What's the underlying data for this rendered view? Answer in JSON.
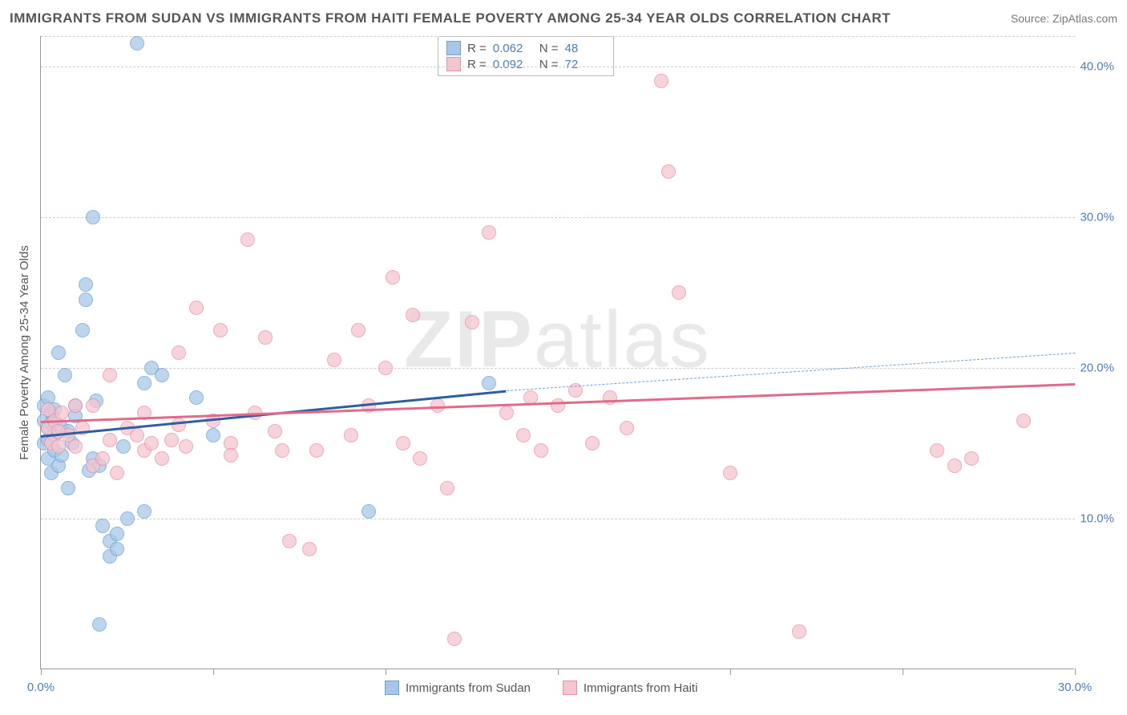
{
  "title": "IMMIGRANTS FROM SUDAN VS IMMIGRANTS FROM HAITI FEMALE POVERTY AMONG 25-34 YEAR OLDS CORRELATION CHART",
  "source_label": "Source: ZipAtlas.com",
  "watermark": {
    "bold": "ZIP",
    "rest": "atlas"
  },
  "y_axis_label": "Female Poverty Among 25-34 Year Olds",
  "chart": {
    "type": "scatter",
    "background_color": "#ffffff",
    "grid_color": "#cccccc",
    "axis_color": "#999999",
    "xlim": [
      0,
      30
    ],
    "ylim": [
      0,
      42
    ],
    "x_ticks": [
      0,
      5,
      10,
      15,
      20,
      25,
      30
    ],
    "x_tick_labels": {
      "0": "0.0%",
      "30": "30.0%"
    },
    "y_ticks": [
      10,
      20,
      30,
      40
    ],
    "y_tick_labels": {
      "10": "10.0%",
      "20": "20.0%",
      "30": "30.0%",
      "40": "40.0%"
    },
    "marker_radius": 9,
    "marker_stroke_width": 1.5,
    "series": [
      {
        "name": "Immigrants from Sudan",
        "color_fill": "#a8c7e8",
        "color_stroke": "#6d9fd1",
        "swatch_fill": "#a8c7e8",
        "swatch_border": "#6d9fd1",
        "R": "0.062",
        "N": "48",
        "trend": {
          "solid": {
            "x1": 0,
            "y1": 15.5,
            "x2": 13.5,
            "y2": 18.5,
            "color": "#2e5e9e",
            "width": 3
          },
          "dashed": {
            "x1": 13.5,
            "y1": 18.5,
            "x2": 30,
            "y2": 21.0,
            "color": "#6d9fd1",
            "width": 1.5
          }
        },
        "points": [
          [
            0.1,
            16.5
          ],
          [
            0.1,
            15.0
          ],
          [
            0.1,
            17.5
          ],
          [
            0.2,
            14.0
          ],
          [
            0.2,
            16.0
          ],
          [
            0.2,
            18.0
          ],
          [
            0.2,
            15.2
          ],
          [
            0.3,
            13.0
          ],
          [
            0.3,
            17.0
          ],
          [
            0.4,
            15.5
          ],
          [
            0.4,
            14.5
          ],
          [
            0.5,
            21.0
          ],
          [
            0.5,
            13.5
          ],
          [
            0.6,
            16.0
          ],
          [
            0.7,
            19.5
          ],
          [
            0.8,
            12.0
          ],
          [
            0.9,
            15.0
          ],
          [
            1.0,
            17.5
          ],
          [
            1.2,
            22.5
          ],
          [
            1.3,
            24.5
          ],
          [
            1.3,
            25.5
          ],
          [
            1.5,
            30.0
          ],
          [
            1.5,
            14.0
          ],
          [
            1.7,
            13.5
          ],
          [
            1.7,
            3.0
          ],
          [
            1.8,
            9.5
          ],
          [
            2.0,
            7.5
          ],
          [
            2.0,
            8.5
          ],
          [
            2.2,
            8.0
          ],
          [
            2.2,
            9.0
          ],
          [
            2.5,
            10.0
          ],
          [
            2.8,
            41.5
          ],
          [
            3.0,
            10.5
          ],
          [
            3.0,
            19.0
          ],
          [
            3.2,
            20.0
          ],
          [
            3.5,
            19.5
          ],
          [
            4.5,
            18.0
          ],
          [
            5.0,
            15.5
          ],
          [
            9.5,
            10.5
          ],
          [
            13.0,
            19.0
          ],
          [
            0.3,
            16.3
          ],
          [
            0.4,
            17.2
          ],
          [
            0.6,
            14.2
          ],
          [
            0.8,
            15.8
          ],
          [
            1.0,
            16.8
          ],
          [
            1.4,
            13.2
          ],
          [
            1.6,
            17.8
          ],
          [
            2.4,
            14.8
          ]
        ]
      },
      {
        "name": "Immigrants from Haiti",
        "color_fill": "#f5c5d1",
        "color_stroke": "#e590a8",
        "swatch_fill": "#f5c5d1",
        "swatch_border": "#e590a8",
        "R": "0.092",
        "N": "72",
        "trend": {
          "solid": {
            "x1": 0,
            "y1": 16.5,
            "x2": 30,
            "y2": 19.0,
            "color": "#e06a8a",
            "width": 3
          }
        },
        "points": [
          [
            0.2,
            16.0
          ],
          [
            0.2,
            17.2
          ],
          [
            0.3,
            15.0
          ],
          [
            0.4,
            16.5
          ],
          [
            0.5,
            14.8
          ],
          [
            0.6,
            17.0
          ],
          [
            0.8,
            15.5
          ],
          [
            1.0,
            17.5
          ],
          [
            1.2,
            16.0
          ],
          [
            1.5,
            13.5
          ],
          [
            1.8,
            14.0
          ],
          [
            2.0,
            19.5
          ],
          [
            2.2,
            13.0
          ],
          [
            2.5,
            16.0
          ],
          [
            2.8,
            15.5
          ],
          [
            3.0,
            14.5
          ],
          [
            3.2,
            15.0
          ],
          [
            3.5,
            14.0
          ],
          [
            3.8,
            15.2
          ],
          [
            4.0,
            21.0
          ],
          [
            4.2,
            14.8
          ],
          [
            4.5,
            24.0
          ],
          [
            5.0,
            16.5
          ],
          [
            5.2,
            22.5
          ],
          [
            5.5,
            15.0
          ],
          [
            6.0,
            28.5
          ],
          [
            6.2,
            17.0
          ],
          [
            6.5,
            22.0
          ],
          [
            7.0,
            14.5
          ],
          [
            7.2,
            8.5
          ],
          [
            7.8,
            8.0
          ],
          [
            8.0,
            14.5
          ],
          [
            8.5,
            20.5
          ],
          [
            9.0,
            15.5
          ],
          [
            9.2,
            22.5
          ],
          [
            9.5,
            17.5
          ],
          [
            10.0,
            20.0
          ],
          [
            10.2,
            26.0
          ],
          [
            10.5,
            15.0
          ],
          [
            10.8,
            23.5
          ],
          [
            11.0,
            14.0
          ],
          [
            11.5,
            17.5
          ],
          [
            11.8,
            12.0
          ],
          [
            12.0,
            2.0
          ],
          [
            12.5,
            23.0
          ],
          [
            13.0,
            29.0
          ],
          [
            13.5,
            17.0
          ],
          [
            14.0,
            15.5
          ],
          [
            14.2,
            18.0
          ],
          [
            14.5,
            14.5
          ],
          [
            15.0,
            17.5
          ],
          [
            15.5,
            18.5
          ],
          [
            16.0,
            15.0
          ],
          [
            16.5,
            18.0
          ],
          [
            17.0,
            16.0
          ],
          [
            18.0,
            39.0
          ],
          [
            18.2,
            33.0
          ],
          [
            18.5,
            25.0
          ],
          [
            20.0,
            13.0
          ],
          [
            22.0,
            2.5
          ],
          [
            26.0,
            14.5
          ],
          [
            26.5,
            13.5
          ],
          [
            27.0,
            14.0
          ],
          [
            28.5,
            16.5
          ],
          [
            0.5,
            15.8
          ],
          [
            1.0,
            14.8
          ],
          [
            1.5,
            17.5
          ],
          [
            2.0,
            15.2
          ],
          [
            3.0,
            17.0
          ],
          [
            4.0,
            16.2
          ],
          [
            5.5,
            14.2
          ],
          [
            6.8,
            15.8
          ]
        ]
      }
    ]
  },
  "legend": {
    "series1_label": "Immigrants from Sudan",
    "series2_label": "Immigrants from Haiti"
  },
  "stats_labels": {
    "R": "R =",
    "N": "N ="
  }
}
